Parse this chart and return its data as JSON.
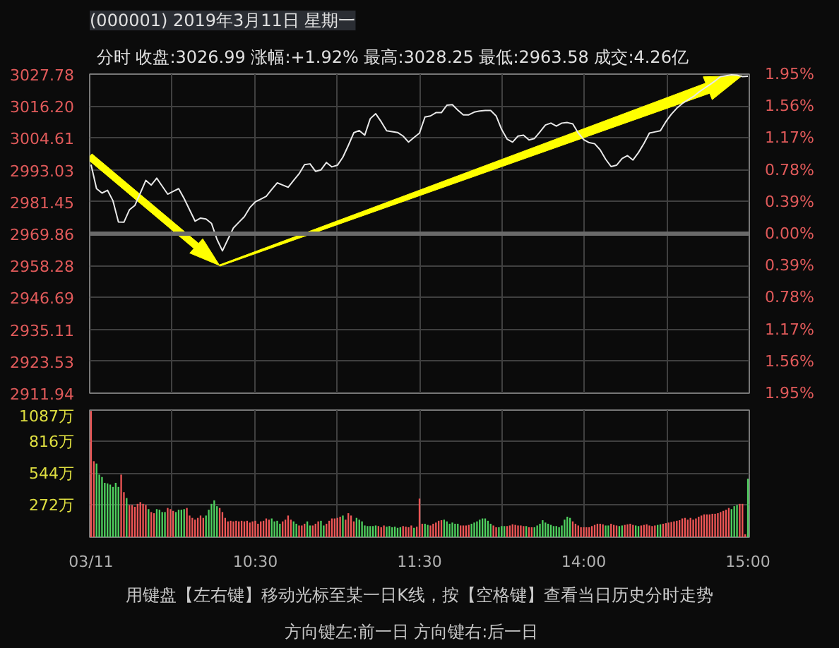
{
  "chart_data": [
    {
      "type": "line",
      "title": "(000001) 2019年3月11日 星期一",
      "subtitle": "分时   收盘:3026.99   涨幅:+1.92%   最高:3028.25   最低:2963.58   成交:4.26亿",
      "categories": [
        null,
        null,
        null,
        null,
        null,
        null,
        null,
        null,
        null,
        null,
        null,
        null,
        null,
        null,
        null,
        null,
        null,
        null,
        null,
        null,
        null,
        null,
        null,
        null,
        null,
        null,
        null,
        null,
        null,
        null,
        null,
        null,
        null,
        null,
        null,
        null,
        null,
        null,
        null,
        null,
        null,
        null,
        null,
        null,
        null,
        null,
        null,
        null,
        null,
        null,
        null,
        null,
        null,
        null,
        null,
        null,
        null,
        null,
        null,
        null,
        null,
        null,
        null,
        null,
        null,
        null,
        null,
        null,
        null,
        null,
        null,
        null,
        null,
        null,
        null,
        null,
        null,
        null,
        null,
        null,
        null,
        null,
        null,
        null,
        null,
        null,
        null,
        null,
        null,
        null,
        null,
        null,
        null,
        null,
        null,
        null,
        null,
        null,
        null,
        null,
        null,
        null,
        null,
        null,
        null,
        null,
        null,
        null,
        null,
        null,
        null,
        null,
        null,
        null,
        null,
        null,
        null,
        null,
        null,
        null,
        null
      ],
      "series": [
        {
          "color": "#e8e8e8",
          "values": [
            2994.9,
            2986.2,
            2984.6,
            2985.6,
            2981.8,
            2974.1,
            2974.0,
            2978.5,
            2980.1,
            2984.6,
            2989.2,
            2987.5,
            2990.0,
            2987.1,
            2984.2,
            2985.2,
            2986.2,
            2982.6,
            2978.5,
            2974.4,
            2975.5,
            2975.2,
            2973.6,
            2967.8,
            2963.6,
            2967.8,
            2971.9,
            2974.0,
            2976.0,
            2979.3,
            2981.4,
            2982.4,
            2983.4,
            2985.9,
            2988.3,
            2987.5,
            2986.7,
            2989.2,
            2991.6,
            2994.9,
            2995.2,
            2992.5,
            2993.0,
            2995.7,
            2994.1,
            2994.7,
            2997.6,
            3001.9,
            3006.5,
            3007.3,
            3005.6,
            3011.6,
            3013.4,
            3010.5,
            3007.2,
            3006.9,
            3006.6,
            3005.3,
            3003.1,
            3004.8,
            3006.4,
            3012.2,
            3012.6,
            3013.8,
            3013.8,
            3016.5,
            3016.7,
            3014.7,
            3013.0,
            3013.0,
            3014.0,
            3014.4,
            3014.6,
            3014.6,
            3012.6,
            3007.7,
            3004.2,
            3003.1,
            3005.3,
            3005.6,
            3003.9,
            3004.4,
            3006.8,
            3009.3,
            3010.0,
            3008.9,
            3010.0,
            3010.2,
            3009.7,
            3006.4,
            3004.0,
            3002.9,
            3002.5,
            3000.3,
            2996.9,
            2994.2,
            2994.7,
            2997.1,
            2998.2,
            2996.6,
            2999.3,
            3002.6,
            3006.4,
            3006.8,
            3007.2,
            3010.5,
            3013.2,
            3015.4,
            3017.1,
            3018.4,
            3019.6,
            3021.2,
            3022.6,
            3023.9,
            3025.3,
            3026.9,
            3027.2,
            3027.5,
            3027.4,
            3026.9,
            3027.0
          ]
        }
      ],
      "ylim": [
        2911.94,
        3027.78
      ],
      "yticks": [
        2911.94,
        2923.53,
        2935.11,
        2946.69,
        2958.28,
        2969.86,
        2981.45,
        2993.03,
        3004.61,
        {
          "value": 3016.2,
          "label": "3016.20"
        },
        3027.78
      ],
      "y2lim": [
        -1.95,
        1.95
      ],
      "y2ticks": [
        {
          "value": -1.95,
          "label": "1.95%"
        },
        {
          "value": -1.56,
          "label": "1.56%"
        },
        {
          "value": -1.17,
          "label": "1.17%"
        },
        {
          "value": -0.78,
          "label": "0.78%"
        },
        {
          "value": -0.39,
          "label": "0.39%"
        },
        {
          "value": 0,
          "label": "0.00%"
        },
        {
          "value": 0.39,
          "label": "0.39%"
        },
        {
          "value": 0.78,
          "label": "0.78%"
        },
        {
          "value": 1.17,
          "label": "1.17%"
        },
        {
          "value": 1.56,
          "label": "1.56%"
        },
        {
          "value": 1.95,
          "label": "1.95%"
        }
      ],
      "ref_lines": [
        {
          "axis": "y",
          "value": 2969.86,
          "color": "#6a6a6a"
        }
      ],
      "grid": true,
      "tick_labels": "y"
    },
    {
      "type": "bar",
      "categories": [
        "03/11",
        null,
        null,
        null,
        null,
        null,
        null,
        null,
        null,
        null,
        null,
        null,
        null,
        null,
        null,
        null,
        null,
        null,
        null,
        null,
        null,
        null,
        null,
        null,
        null,
        null,
        null,
        null,
        null,
        null,
        null,
        null,
        null,
        null,
        null,
        null,
        null,
        null,
        null,
        null,
        null,
        null,
        null,
        null,
        null,
        null,
        null,
        null,
        null,
        null,
        null,
        null,
        null,
        null,
        null,
        null,
        null,
        null,
        null,
        null,
        "10:30",
        null,
        null,
        null,
        null,
        null,
        null,
        null,
        null,
        null,
        null,
        null,
        null,
        null,
        null,
        null,
        null,
        null,
        null,
        null,
        null,
        null,
        null,
        null,
        null,
        null,
        null,
        null,
        null,
        null,
        null,
        null,
        null,
        null,
        null,
        null,
        null,
        null,
        null,
        null,
        null,
        null,
        null,
        null,
        null,
        null,
        null,
        null,
        null,
        null,
        null,
        null,
        null,
        null,
        null,
        null,
        null,
        null,
        null,
        null,
        "11:30",
        null,
        null,
        null,
        null,
        null,
        null,
        null,
        null,
        null,
        null,
        null,
        null,
        null,
        null,
        null,
        null,
        null,
        null,
        null,
        null,
        null,
        null,
        null,
        null,
        null,
        null,
        null,
        null,
        null,
        null,
        null,
        null,
        null,
        null,
        null,
        null,
        null,
        null,
        null,
        null,
        null,
        null,
        null,
        null,
        null,
        null,
        null,
        null,
        null,
        null,
        null,
        null,
        null,
        null,
        null,
        null,
        null,
        null,
        null,
        "14:00",
        null,
        null,
        null,
        null,
        null,
        null,
        null,
        null,
        null,
        null,
        null,
        null,
        null,
        null,
        null,
        null,
        null,
        null,
        null,
        null,
        null,
        null,
        null,
        null,
        null,
        null,
        null,
        null,
        null,
        null,
        null,
        null,
        null,
        null,
        null,
        null,
        null,
        null,
        null,
        null,
        null,
        null,
        null,
        null,
        null,
        null,
        null,
        null,
        null,
        null,
        null,
        null,
        null,
        null,
        null,
        null,
        null,
        null,
        null,
        "15:00"
      ],
      "values": [
        1080,
        650,
        630,
        535,
        515,
        465,
        460,
        450,
        430,
        465,
        430,
        535,
        385,
        335,
        275,
        275,
        260,
        285,
        300,
        285,
        275,
        240,
        215,
        205,
        240,
        235,
        215,
        215,
        250,
        240,
        225,
        215,
        235,
        235,
        240,
        250,
        185,
        165,
        150,
        165,
        185,
        165,
        185,
        235,
        285,
        315,
        265,
        250,
        215,
        165,
        135,
        140,
        135,
        140,
        135,
        140,
        135,
        140,
        125,
        135,
        140,
        115,
        135,
        140,
        160,
        150,
        160,
        135,
        140,
        115,
        135,
        150,
        185,
        150,
        135,
        115,
        100,
        100,
        115,
        135,
        100,
        100,
        115,
        135,
        140,
        100,
        115,
        140,
        160,
        160,
        165,
        175,
        185,
        150,
        205,
        185,
        135,
        165,
        150,
        135,
        100,
        95,
        95,
        95,
        100,
        95,
        85,
        100,
        90,
        95,
        85,
        90,
        80,
        85,
        95,
        90,
        85,
        100,
        80,
        90,
        330,
        115,
        115,
        105,
        100,
        115,
        125,
        140,
        145,
        150,
        135,
        115,
        125,
        115,
        115,
        100,
        100,
        100,
        105,
        115,
        125,
        135,
        150,
        160,
        160,
        140,
        115,
        100,
        85,
        85,
        95,
        95,
        95,
        100,
        110,
        105,
        100,
        100,
        95,
        95,
        85,
        85,
        85,
        100,
        115,
        145,
        125,
        115,
        105,
        95,
        95,
        85,
        100,
        150,
        175,
        165,
        135,
        115,
        100,
        85,
        85,
        85,
        85,
        95,
        105,
        115,
        115,
        110,
        100,
        100,
        115,
        105,
        100,
        95,
        100,
        105,
        110,
        115,
        105,
        100,
        95,
        100,
        105,
        110,
        100,
        95,
        100,
        105,
        110,
        115,
        120,
        125,
        130,
        135,
        140,
        145,
        160,
        165,
        150,
        165,
        150,
        160,
        175,
        185,
        195,
        195,
        195,
        200,
        200,
        205,
        215,
        225,
        235,
        250,
        240,
        265,
        275,
        285,
        285,
        25,
        500
      ],
      "colors": [
        "#f05656",
        "#f05656",
        "#4fd15f",
        "#4fd15f",
        "#4fd15f",
        "#4fd15f",
        "#4fd15f",
        "#4fd15f",
        "#4fd15f",
        "#4fd15f",
        "#4fd15f",
        "#f05656",
        "#f05656",
        "#4fd15f",
        "#f05656",
        "#f05656",
        "#f05656",
        "#f05656",
        "#f05656",
        "#f05656",
        "#f05656",
        "#4fd15f",
        "#f05656",
        "#f05656",
        "#4fd15f",
        "#4fd15f",
        "#4fd15f",
        "#4fd15f",
        "#f05656",
        "#f05656",
        "#f05656",
        "#4fd15f",
        "#4fd15f",
        "#4fd15f",
        "#4fd15f",
        "#f05656",
        "#f05656",
        "#f05656",
        "#f05656",
        "#f05656",
        "#f05656",
        "#f05656",
        "#4fd15f",
        "#4fd15f",
        "#4fd15f",
        "#4fd15f",
        "#4fd15f",
        "#f05656",
        "#f05656",
        "#f05656",
        "#f05656",
        "#f05656",
        "#f05656",
        "#f05656",
        "#f05656",
        "#f05656",
        "#f05656",
        "#f05656",
        "#f05656",
        "#f05656",
        "#f05656",
        "#f05656",
        "#f05656",
        "#f05656",
        "#f05656",
        "#f05656",
        "#4fd15f",
        "#4fd15f",
        "#4fd15f",
        "#4fd15f",
        "#f05656",
        "#f05656",
        "#f05656",
        "#f05656",
        "#4fd15f",
        "#4fd15f",
        "#f05656",
        "#f05656",
        "#f05656",
        "#4fd15f",
        "#4fd15f",
        "#f05656",
        "#f05656",
        "#f05656",
        "#4fd15f",
        "#4fd15f",
        "#f05656",
        "#f05656",
        "#f05656",
        "#f05656",
        "#f05656",
        "#f05656",
        "#4fd15f",
        "#f05656",
        "#f05656",
        "#f05656",
        "#f05656",
        "#4fd15f",
        "#4fd15f",
        "#4fd15f",
        "#4fd15f",
        "#4fd15f",
        "#4fd15f",
        "#4fd15f",
        "#4fd15f",
        "#f05656",
        "#f05656",
        "#f05656",
        "#4fd15f",
        "#4fd15f",
        "#4fd15f",
        "#4fd15f",
        "#4fd15f",
        "#4fd15f",
        "#f05656",
        "#f05656",
        "#f05656",
        "#f05656",
        "#4fd15f",
        "#f05656",
        "#f05656",
        "#f05656",
        "#4fd15f",
        "#4fd15f",
        "#f05656",
        "#f05656",
        "#f05656",
        "#f05656",
        "#f05656",
        "#4fd15f",
        "#4fd15f",
        "#4fd15f",
        "#4fd15f",
        "#4fd15f",
        "#4fd15f",
        "#f05656",
        "#f05656",
        "#f05656",
        "#f05656",
        "#4fd15f",
        "#4fd15f",
        "#4fd15f",
        "#4fd15f",
        "#4fd15f",
        "#4fd15f",
        "#4fd15f",
        "#4fd15f",
        "#f05656",
        "#f05656",
        "#4fd15f",
        "#4fd15f",
        "#4fd15f",
        "#f05656",
        "#f05656",
        "#f05656",
        "#f05656",
        "#f05656",
        "#f05656",
        "#f05656",
        "#4fd15f",
        "#f05656",
        "#f05656",
        "#4fd15f",
        "#4fd15f",
        "#4fd15f",
        "#4fd15f",
        "#4fd15f",
        "#4fd15f",
        "#4fd15f",
        "#4fd15f",
        "#4fd15f",
        "#4fd15f",
        "#4fd15f",
        "#4fd15f",
        "#4fd15f",
        "#4fd15f",
        "#f05656",
        "#f05656",
        "#f05656",
        "#f05656",
        "#f05656",
        "#f05656",
        "#f05656",
        "#f05656",
        "#f05656",
        "#f05656",
        "#f05656",
        "#f05656",
        "#4fd15f",
        "#4fd15f",
        "#f05656",
        "#f05656",
        "#f05656",
        "#4fd15f",
        "#4fd15f",
        "#f05656",
        "#f05656",
        "#f05656",
        "#f05656",
        "#4fd15f",
        "#4fd15f",
        "#f05656",
        "#f05656",
        "#f05656",
        "#f05656",
        "#f05656",
        "#f05656",
        "#4fd15f",
        "#4fd15f",
        "#f05656",
        "#f05656",
        "#f05656",
        "#f05656",
        "#f05656",
        "#f05656",
        "#f05656",
        "#f05656",
        "#f05656",
        "#f05656",
        "#f05656",
        "#f05656",
        "#f05656",
        "#f05656",
        "#f05656",
        "#f05656",
        "#f05656",
        "#f05656",
        "#f05656",
        "#f05656",
        "#f05656",
        "#f05656",
        "#f05656",
        "#f05656",
        "#f05656",
        "#4fd15f",
        "#4fd15f",
        "#4fd15f",
        "#f05656",
        "#f05656",
        "#f05656",
        "#4fd15f"
      ],
      "ylim": [
        0,
        1087
      ],
      "yticks": [
        {
          "value": 272,
          "label": "272万"
        },
        {
          "value": 544,
          "label": "544万"
        },
        {
          "value": 816,
          "label": "816万"
        },
        {
          "value": 1087,
          "label": "1087万"
        }
      ],
      "grid": true,
      "annotations": [
        "用键盘【左右键】移动光标至某一日K线，按【空格键】查看当日历史分时走势",
        "方向键左:前一日    方向键右:后一日"
      ]
    }
  ]
}
